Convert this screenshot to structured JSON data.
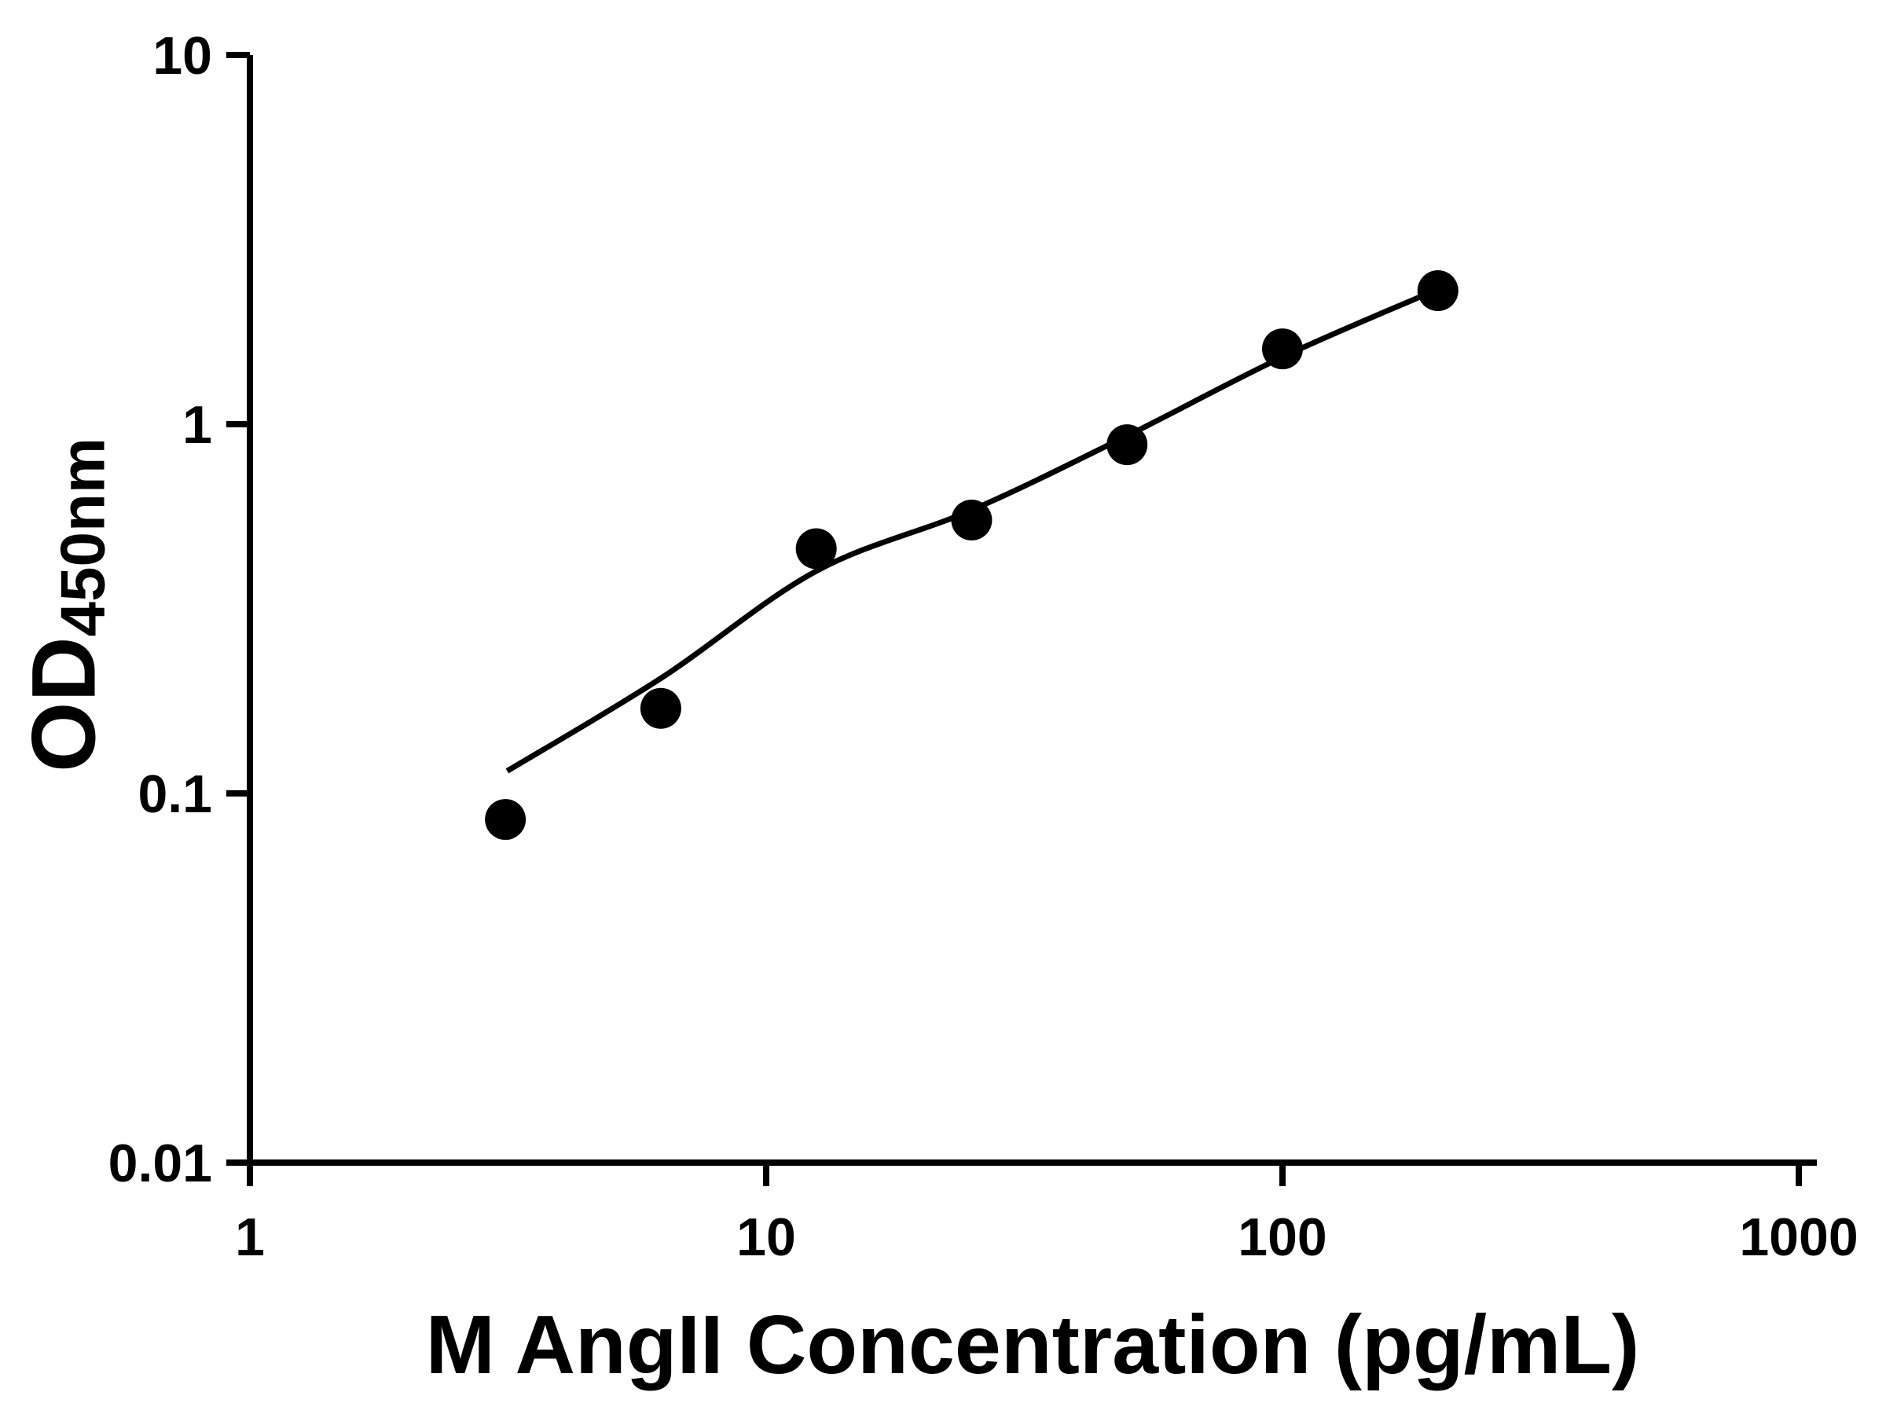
{
  "figure": {
    "background_color": "#ffffff",
    "foreground_color": "#000000"
  },
  "chart_data": {
    "type": "scatter",
    "title": "",
    "xlabel": "M AngII Concentration (pg/mL)",
    "ylabel": "OD450nm",
    "ylabel_main": "OD",
    "ylabel_sub": "450nm",
    "xscale": "log",
    "yscale": "log",
    "xlim": [
      1,
      1000
    ],
    "ylim": [
      0.01,
      10
    ],
    "grid": false,
    "legend": false,
    "x_ticks": [
      1,
      10,
      100,
      1000
    ],
    "x_tick_labels": [
      "1",
      "10",
      "100",
      "1000"
    ],
    "y_ticks": [
      0.01,
      0.1,
      1,
      10
    ],
    "y_tick_labels": [
      "0.01",
      "0.1",
      "1",
      "10"
    ],
    "x": [
      3.125,
      6.25,
      12.5,
      25,
      50,
      100,
      200
    ],
    "y": [
      0.085,
      0.17,
      0.46,
      0.55,
      0.88,
      1.6,
      2.3
    ],
    "trend": {
      "x": [
        3.15,
        6.25,
        12.5,
        25,
        50,
        100,
        200
      ],
      "y": [
        0.115,
        0.205,
        0.4,
        0.585,
        0.93,
        1.52,
        2.32
      ]
    },
    "marker_color": "#000000",
    "marker_radius": 26,
    "line_color": "#000000",
    "line_width": 7,
    "axis_color": "#000000",
    "axis_width": 8
  }
}
